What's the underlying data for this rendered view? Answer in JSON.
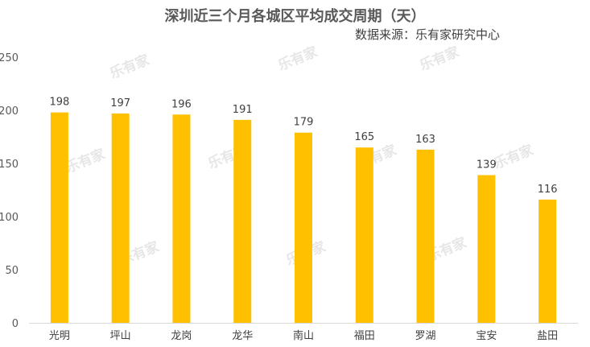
{
  "chart_data": {
    "type": "bar",
    "title": "深圳近三个月各城区平均成交周期（天）",
    "subtitle": "数据来源：乐有家研究中心",
    "categories": [
      "光明",
      "坪山",
      "龙岗",
      "龙华",
      "南山",
      "福田",
      "罗湖",
      "宝安",
      "盐田"
    ],
    "values": [
      198,
      197,
      196,
      191,
      179,
      165,
      163,
      139,
      116
    ],
    "ylim": [
      0,
      250
    ],
    "yticks": [
      0,
      50,
      100,
      150,
      200,
      250
    ],
    "grid": false,
    "legend": "none",
    "bar_color": "#FFC000",
    "watermark": "乐有家"
  }
}
